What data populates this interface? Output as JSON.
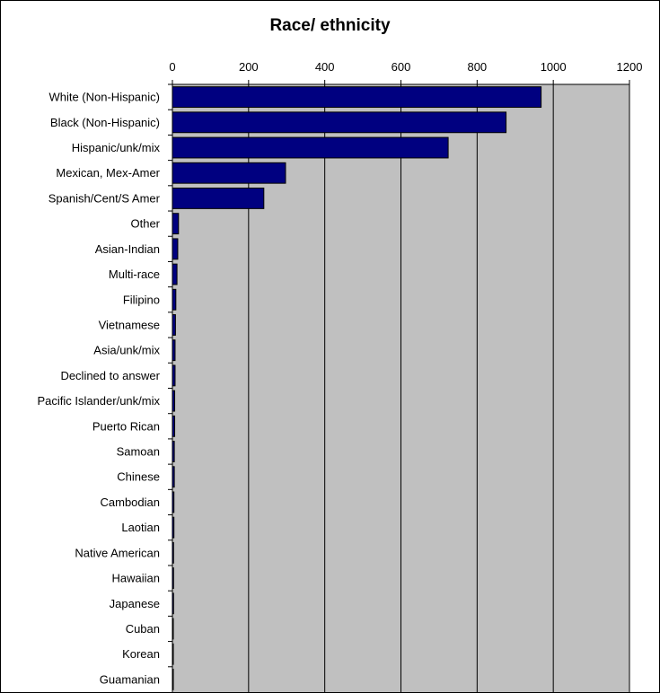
{
  "chart_data": {
    "type": "bar",
    "orientation": "horizontal",
    "title": "Race/ ethnicity",
    "xlabel": "",
    "ylabel": "",
    "xlim": [
      0,
      1200
    ],
    "x_ticks": [
      "0",
      "200",
      "400",
      "600",
      "800",
      "1000",
      "1200"
    ],
    "grid": "vertical",
    "legend": "none",
    "plot_background": "#c0c0c0",
    "bar_color": "#000080",
    "categories": [
      "White (Non-Hispanic)",
      "Black (Non-Hispanic)",
      "Hispanic/unk/mix",
      "Mexican, Mex-Amer",
      "Spanish/Cent/S Amer",
      "Other",
      "Asian-Indian",
      "Multi-race",
      "Filipino",
      "Vietnamese",
      "Asia/unk/mix",
      "Declined to answer",
      "Pacific Islander/unk/mix",
      "Puerto Rican",
      "Samoan",
      "Chinese",
      "Cambodian",
      "Laotian",
      "Native American",
      "Hawaiian",
      "Japanese",
      "Cuban",
      "Korean",
      "Guamanian"
    ],
    "values": [
      968,
      876,
      724,
      297,
      240,
      16,
      14,
      12,
      9,
      8,
      7,
      7,
      6,
      6,
      5,
      5,
      4,
      4,
      3,
      3,
      3,
      2,
      2,
      2
    ]
  }
}
